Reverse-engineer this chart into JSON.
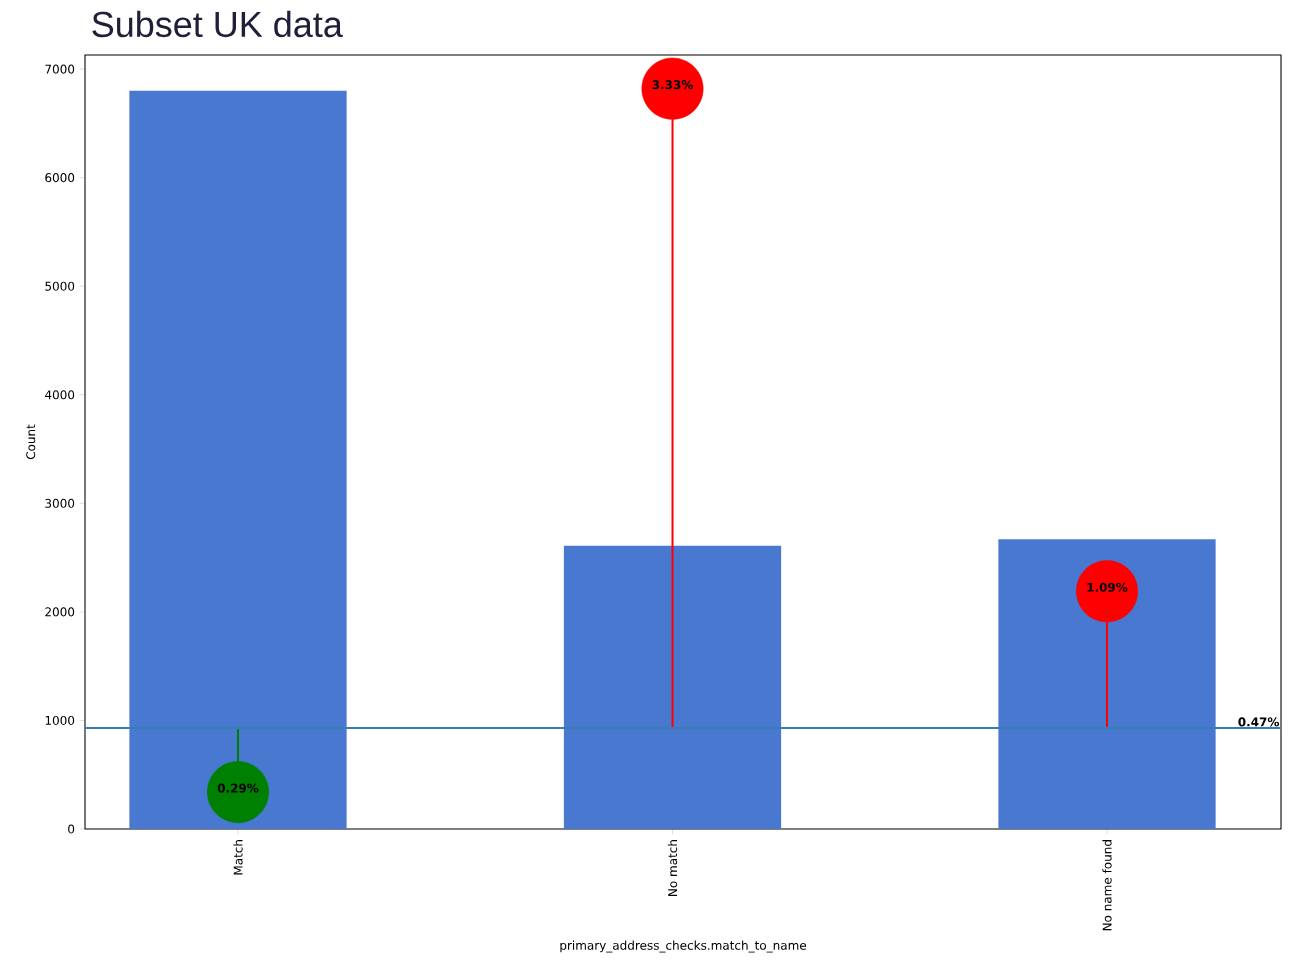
{
  "chart_data": {
    "type": "bar",
    "title": "Subset UK data",
    "xlabel": "primary_address_checks.match_to_name",
    "ylabel": "Count",
    "categories": [
      "Match",
      "No match",
      "No name found"
    ],
    "series": [
      {
        "color": "#4878cf",
        "values": [
          6800,
          2610,
          2670
        ]
      },
      {
        "type": "line",
        "color": "#008000",
        "x": [
          "Match",
          "Match"
        ],
        "values": [
          930,
          340
        ],
        "marker": "none"
      },
      {
        "type": "line",
        "color": "#ff0000",
        "x": [
          "No match",
          "No match"
        ],
        "values": [
          930,
          6820
        ],
        "marker": "none"
      },
      {
        "type": "line",
        "color": "#ff0000",
        "x": [
          "No name found",
          "No name found"
        ],
        "values": [
          930,
          2190
        ],
        "marker": "none"
      },
      {
        "type": "scatter",
        "x": [
          "Match",
          "No match",
          "No name found"
        ],
        "colors": [
          "#008000",
          "#ff0000",
          "#ff0000"
        ],
        "values": [
          340,
          6820,
          2190
        ],
        "marker": "circle"
      }
    ],
    "ylim": [
      0,
      7130
    ],
    "yticks": [
      0,
      1000,
      2000,
      3000,
      4000,
      5000,
      6000,
      7000
    ],
    "ref_lines": [
      {
        "axis": "y",
        "value": 930,
        "color": "#3a7db5"
      }
    ],
    "annotations": [
      {
        "text": "0.29%",
        "x": "Match",
        "y": 340
      },
      {
        "text": "3.33%",
        "x": "No match",
        "y": 6820
      },
      {
        "text": "1.09%",
        "x": "No name found",
        "y": 2190
      },
      {
        "text": "0.47%",
        "y": 930
      }
    ],
    "grid": false
  }
}
